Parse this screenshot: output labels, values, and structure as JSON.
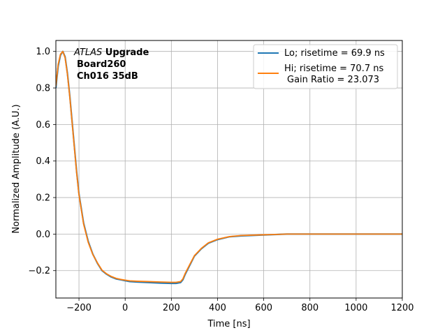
{
  "chart_data": {
    "type": "line",
    "xlabel": "Time [ns]",
    "ylabel": "Normalized Amplitude (A.U.)",
    "xlim": [
      -300,
      1200
    ],
    "ylim": [
      -0.35,
      1.06
    ],
    "xticks": [
      -200,
      0,
      200,
      400,
      600,
      800,
      1000,
      1200
    ],
    "yticks": [
      -0.2,
      0.0,
      0.2,
      0.4,
      0.6,
      0.8,
      1.0
    ],
    "xtick_labels": [
      "−200",
      "0",
      "200",
      "400",
      "600",
      "800",
      "1000",
      "1200"
    ],
    "ytick_labels": [
      "−0.2",
      "0.0",
      "0.2",
      "0.4",
      "0.6",
      "0.8",
      "1.0"
    ],
    "grid": true,
    "legend_placement": "top-right",
    "annotation": {
      "line1_italic": "ATLAS",
      "line1_bold": " Upgrade",
      "line2": "Board260",
      "line3": "Ch016 35dB"
    },
    "series": [
      {
        "name": "Lo; risetime = 69.9 ns",
        "color": "#1f77b4",
        "x": [
          -300,
          -290,
          -280,
          -270,
          -260,
          -250,
          -240,
          -230,
          -220,
          -210,
          -200,
          -180,
          -160,
          -140,
          -120,
          -100,
          -80,
          -60,
          -40,
          -20,
          0,
          20,
          50,
          100,
          150,
          200,
          220,
          240,
          250,
          260,
          280,
          300,
          330,
          360,
          400,
          450,
          500,
          600,
          700,
          800,
          900,
          1000,
          1100,
          1200
        ],
        "y": [
          0.8,
          0.92,
          0.98,
          1.0,
          0.97,
          0.88,
          0.76,
          0.62,
          0.48,
          0.34,
          0.22,
          0.06,
          -0.04,
          -0.11,
          -0.16,
          -0.2,
          -0.22,
          -0.235,
          -0.245,
          -0.25,
          -0.255,
          -0.26,
          -0.262,
          -0.265,
          -0.268,
          -0.27,
          -0.27,
          -0.265,
          -0.25,
          -0.22,
          -0.17,
          -0.12,
          -0.08,
          -0.05,
          -0.03,
          -0.015,
          -0.01,
          -0.005,
          0.0,
          0.0,
          0.0,
          0.0,
          0.0,
          0.0
        ]
      },
      {
        "name": "Hi; risetime = 70.7 ns",
        "name_line2": "Gain Ratio = 23.073",
        "color": "#ff7f0e",
        "x": [
          -300,
          -290,
          -280,
          -270,
          -260,
          -250,
          -240,
          -230,
          -220,
          -210,
          -200,
          -180,
          -160,
          -140,
          -120,
          -100,
          -80,
          -60,
          -40,
          -20,
          0,
          20,
          50,
          100,
          150,
          200,
          220,
          240,
          250,
          260,
          280,
          300,
          330,
          360,
          400,
          450,
          500,
          600,
          700,
          800,
          900,
          1000,
          1100,
          1200
        ],
        "y": [
          0.81,
          0.93,
          0.985,
          1.0,
          0.965,
          0.875,
          0.755,
          0.615,
          0.475,
          0.335,
          0.215,
          0.055,
          -0.045,
          -0.112,
          -0.158,
          -0.198,
          -0.218,
          -0.232,
          -0.242,
          -0.248,
          -0.252,
          -0.256,
          -0.258,
          -0.26,
          -0.262,
          -0.264,
          -0.264,
          -0.26,
          -0.245,
          -0.215,
          -0.166,
          -0.118,
          -0.078,
          -0.048,
          -0.028,
          -0.014,
          -0.008,
          -0.004,
          0.0,
          0.0,
          0.0,
          0.0,
          0.0,
          0.0
        ]
      }
    ]
  }
}
